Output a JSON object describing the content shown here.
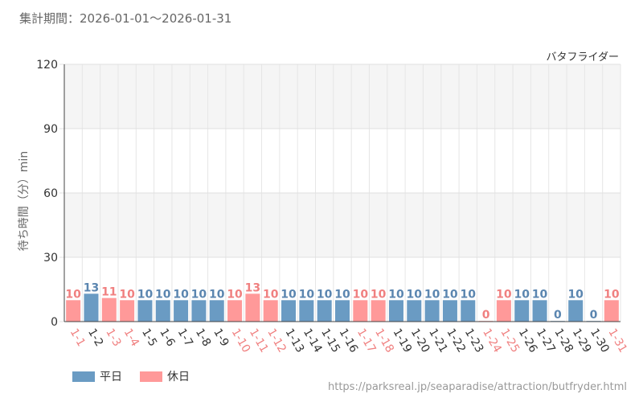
{
  "header": {
    "title": "集計期間：2026-01-01～2026-01-31",
    "attraction": "バタフライダー"
  },
  "footer": {
    "url": "https://parksreal.jp/seaparadise/attraction/butfryder.html"
  },
  "colors": {
    "weekday": "#6a9bc3",
    "holiday": "#ff9999",
    "weekday_label": "#5b86b0",
    "holiday_label": "#f08080"
  },
  "chart_data": {
    "type": "bar",
    "title": "",
    "xlabel": "",
    "ylabel": "待ち時間（分）min",
    "ylim": [
      0,
      120
    ],
    "yticks": [
      0,
      30,
      60,
      90,
      120
    ],
    "grid": true,
    "legend_position": "bottom-left",
    "categories": [
      "1-1",
      "1-2",
      "1-3",
      "1-4",
      "1-5",
      "1-6",
      "1-7",
      "1-8",
      "1-9",
      "1-10",
      "1-11",
      "1-12",
      "1-13",
      "1-14",
      "1-15",
      "1-16",
      "1-17",
      "1-18",
      "1-19",
      "1-20",
      "1-21",
      "1-22",
      "1-23",
      "1-24",
      "1-25",
      "1-26",
      "1-27",
      "1-28",
      "1-29",
      "1-30",
      "1-31"
    ],
    "values": [
      10,
      13,
      11,
      10,
      10,
      10,
      10,
      10,
      10,
      10,
      13,
      10,
      10,
      10,
      10,
      10,
      10,
      10,
      10,
      10,
      10,
      10,
      10,
      0,
      10,
      10,
      10,
      0,
      10,
      0,
      10
    ],
    "day_type": [
      "holiday",
      "weekday",
      "holiday",
      "holiday",
      "weekday",
      "weekday",
      "weekday",
      "weekday",
      "weekday",
      "holiday",
      "holiday",
      "holiday",
      "weekday",
      "weekday",
      "weekday",
      "weekday",
      "holiday",
      "holiday",
      "weekday",
      "weekday",
      "weekday",
      "weekday",
      "weekday",
      "holiday",
      "holiday",
      "weekday",
      "weekday",
      "weekday",
      "weekday",
      "weekday",
      "holiday"
    ],
    "series": [
      {
        "name": "平日",
        "key": "weekday"
      },
      {
        "name": "休日",
        "key": "holiday"
      }
    ]
  }
}
